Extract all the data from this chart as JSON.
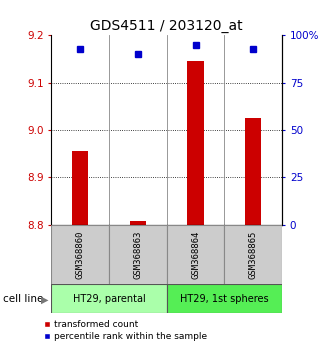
{
  "title": "GDS4511 / 203120_at",
  "samples": [
    "GSM368860",
    "GSM368863",
    "GSM368864",
    "GSM368865"
  ],
  "bar_values": [
    8.955,
    8.807,
    9.145,
    9.025
  ],
  "bar_base": 8.8,
  "percentile_values": [
    93,
    90,
    95,
    93
  ],
  "ylim_left": [
    8.8,
    9.2
  ],
  "ylim_right": [
    0,
    100
  ],
  "yticks_left": [
    8.8,
    8.9,
    9.0,
    9.1,
    9.2
  ],
  "yticks_right": [
    0,
    25,
    50,
    75,
    100
  ],
  "ytick_labels_right": [
    "0",
    "25",
    "50",
    "75",
    "100%"
  ],
  "bar_color": "#cc0000",
  "square_color": "#0000cc",
  "group1_label": "HT29, parental",
  "group2_label": "HT29, 1st spheres",
  "group1_color": "#aaffaa",
  "group2_color": "#55ee55",
  "cell_line_label": "cell line",
  "legend_bar_label": "transformed count",
  "legend_sq_label": "percentile rank within the sample",
  "bg_color": "#ffffff",
  "sample_box_color": "#cccccc",
  "title_fontsize": 10,
  "tick_fontsize": 7.5,
  "label_fontsize": 7.5
}
